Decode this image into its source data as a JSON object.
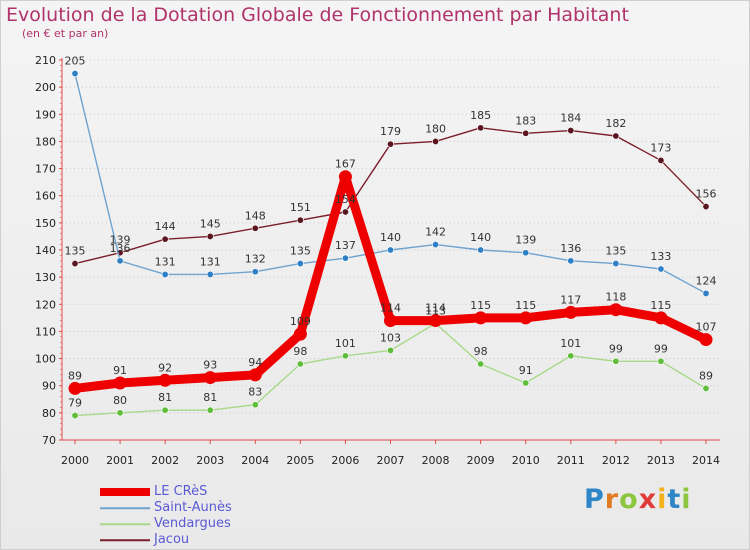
{
  "header": {
    "title": "Evolution de la Dotation Globale de Fonctionnement par Habitant",
    "subtitle": "(en € et par an)"
  },
  "logo": {
    "letters": [
      "P",
      "r",
      "o",
      "x",
      "i",
      "t",
      "i"
    ],
    "colors": [
      "#2e86c8",
      "#e07b22",
      "#8cc63f",
      "#e03a3a",
      "#f2b21c",
      "#2e86c8",
      "#8cc63f"
    ]
  },
  "chart_data": {
    "type": "line",
    "title": "Evolution de la Dotation Globale de Fonctionnement par Habitant",
    "subtitle": "(en € et par an)",
    "xlabel": "",
    "ylabel": "",
    "ylim": [
      70,
      210
    ],
    "yticks": [
      70,
      80,
      90,
      100,
      110,
      120,
      130,
      140,
      150,
      160,
      170,
      180,
      190,
      200,
      210
    ],
    "categories": [
      "2000",
      "2001",
      "2002",
      "2003",
      "2004",
      "2005",
      "2006",
      "2007",
      "2008",
      "2009",
      "2010",
      "2011",
      "2012",
      "2013",
      "2014"
    ],
    "grid": "horizontal dotted",
    "legend_position": "bottom-left",
    "series": [
      {
        "name": "Jacou",
        "color": "#7a1f2b",
        "marker": "#5a1620",
        "weight": "thin",
        "values": [
          135,
          139,
          144,
          145,
          148,
          151,
          154,
          179,
          180,
          185,
          183,
          184,
          182,
          173,
          156
        ]
      },
      {
        "name": "Saint-Aunès",
        "color": "#6ea3cf",
        "marker": "#2f7fc6",
        "weight": "thin",
        "values": [
          205,
          136,
          131,
          131,
          132,
          135,
          137,
          140,
          142,
          140,
          139,
          136,
          135,
          133,
          124
        ]
      },
      {
        "name": "Vendargues",
        "color": "#a8d98a",
        "marker": "#5fbd3a",
        "weight": "thin",
        "values": [
          79,
          80,
          81,
          81,
          83,
          98,
          101,
          103,
          113,
          98,
          91,
          101,
          99,
          99,
          89
        ]
      },
      {
        "name": "LE CRèS",
        "color": "#ee0000",
        "marker": "#ee0000",
        "weight": "thick",
        "values": [
          89,
          91,
          92,
          93,
          94,
          109,
          167,
          114,
          114,
          115,
          115,
          117,
          118,
          115,
          107
        ]
      }
    ],
    "legend_order": [
      "LE CRèS",
      "Saint-Aunès",
      "Vendargues",
      "Jacou"
    ]
  }
}
